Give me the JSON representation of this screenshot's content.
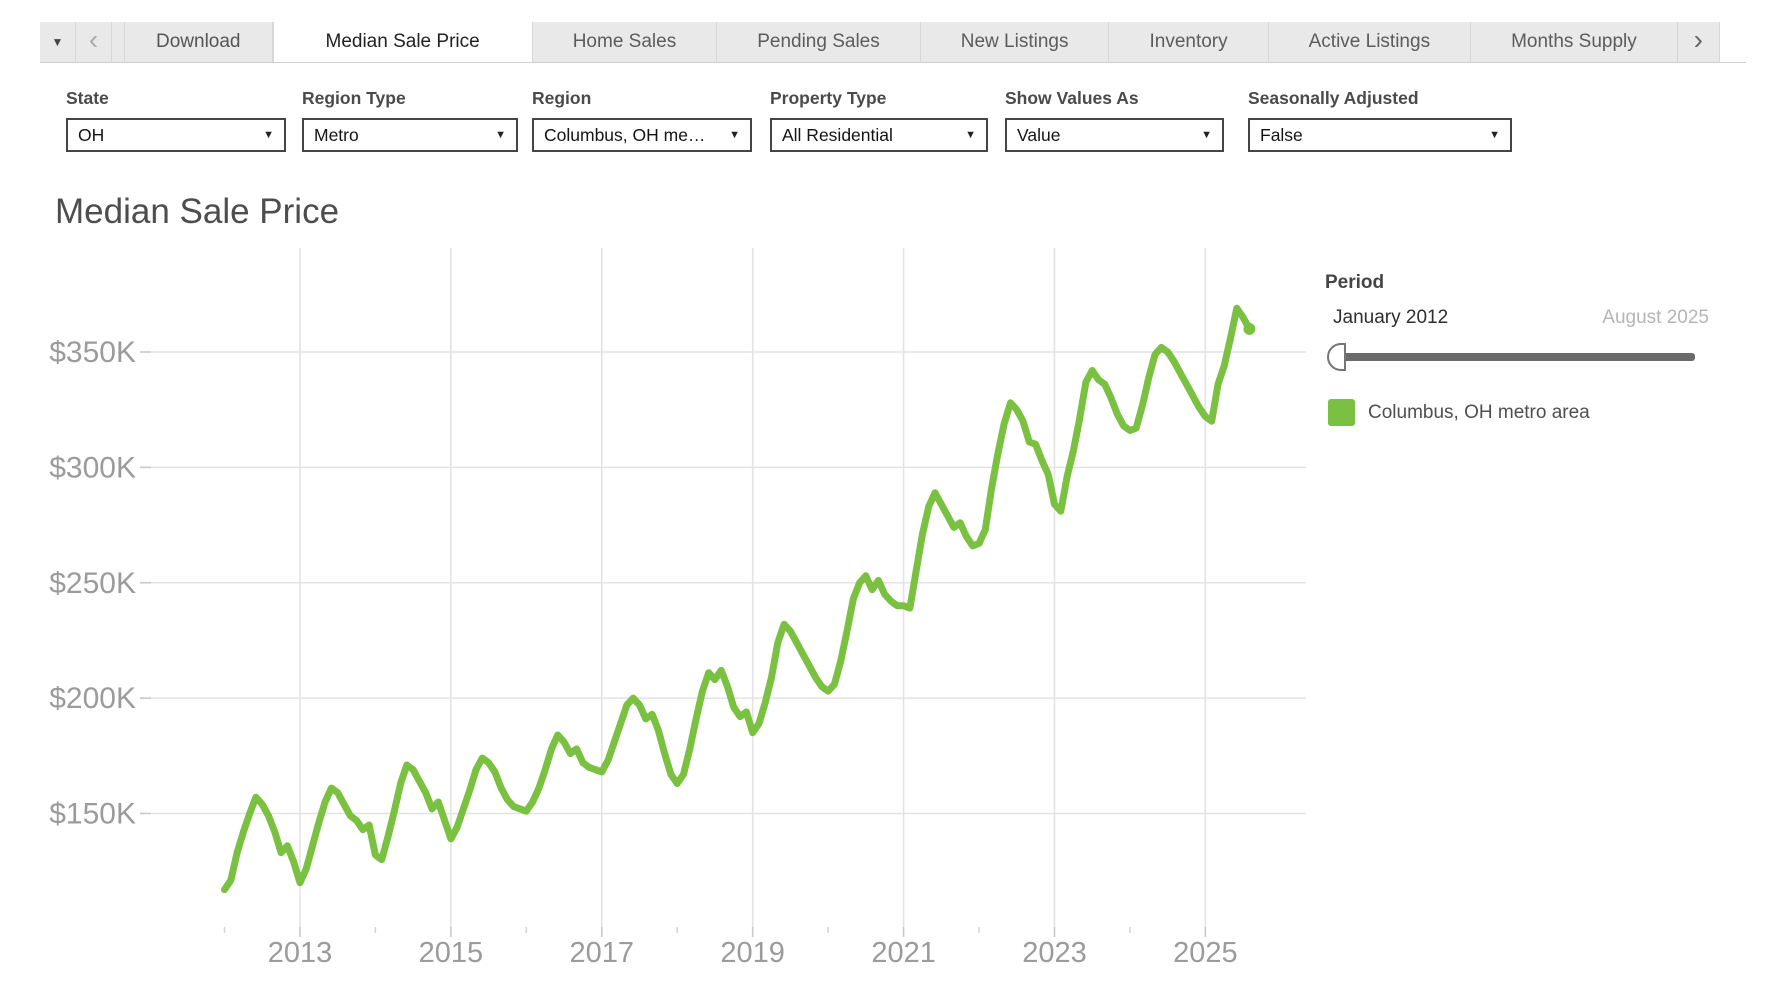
{
  "toolbar": {
    "download_label": "Download",
    "menu_caret": "▼",
    "back_chevron": "‹",
    "next_chevron": "›"
  },
  "tabs": [
    "Median Sale Price",
    "Home Sales",
    "Pending Sales",
    "New Listings",
    "Inventory",
    "Active Listings",
    "Months Supply"
  ],
  "filters": [
    {
      "label": "State",
      "value": "OH"
    },
    {
      "label": "Region Type",
      "value": "Metro"
    },
    {
      "label": "Region",
      "value": "Columbus, OH me…"
    },
    {
      "label": "Property Type",
      "value": "All Residential"
    },
    {
      "label": "Show Values As",
      "value": "Value"
    },
    {
      "label": "Seasonally Adjusted",
      "value": "False"
    }
  ],
  "dropdown_caret": "▼",
  "chart": {
    "title": "Median Sale Price"
  },
  "period": {
    "label": "Period",
    "start": "January 2012",
    "end": "August 2025"
  },
  "legend": {
    "label": "Columbus, OH metro area",
    "color": "#7ac142"
  },
  "chart_data": {
    "type": "line",
    "title": "Median Sale Price",
    "series_name": "Columbus, OH metro area",
    "color": "#7ac142",
    "frequency": "monthly",
    "x_start": "2012-01",
    "x_end": "2025-08",
    "units": "USD thousands",
    "ylim": [
      100,
      390
    ],
    "y_ticks": [
      150,
      200,
      250,
      300,
      350
    ],
    "y_tick_labels": [
      "$150K",
      "$200K",
      "$250K",
      "$300K",
      "$350K"
    ],
    "x_major_years": [
      2013,
      2015,
      2017,
      2019,
      2021,
      2023,
      2025
    ],
    "x_minor_years": [
      2012,
      2014,
      2016,
      2018,
      2020,
      2022,
      2024
    ],
    "grid": true,
    "legend_position": "right",
    "values": [
      117,
      121,
      133,
      142,
      150,
      157,
      154,
      149,
      142,
      133,
      136,
      129,
      120,
      126,
      136,
      146,
      155,
      161,
      159,
      154,
      149,
      147,
      143,
      145,
      132,
      130,
      140,
      151,
      163,
      171,
      169,
      164,
      159,
      152,
      155,
      147,
      139,
      144,
      152,
      160,
      169,
      174,
      172,
      168,
      161,
      156,
      153,
      152,
      151,
      155,
      161,
      169,
      178,
      184,
      181,
      176,
      178,
      172,
      170,
      169,
      168,
      173,
      181,
      189,
      197,
      200,
      197,
      191,
      193,
      186,
      176,
      167,
      163,
      167,
      178,
      191,
      203,
      211,
      208,
      212,
      205,
      196,
      192,
      194,
      185,
      189,
      198,
      209,
      224,
      232,
      229,
      224,
      219,
      214,
      209,
      205,
      203,
      206,
      216,
      229,
      243,
      250,
      253,
      247,
      251,
      245,
      242,
      240,
      240,
      239,
      255,
      271,
      283,
      289,
      284,
      279,
      274,
      276,
      270,
      266,
      267,
      273,
      291,
      306,
      319,
      328,
      325,
      320,
      311,
      310,
      303,
      297,
      284,
      281,
      296,
      307,
      321,
      337,
      342,
      338,
      336,
      330,
      323,
      318,
      316,
      317,
      327,
      339,
      349,
      352,
      350,
      346,
      341,
      336,
      331,
      326,
      322,
      320,
      336,
      344,
      356,
      369,
      365,
      360
    ]
  }
}
